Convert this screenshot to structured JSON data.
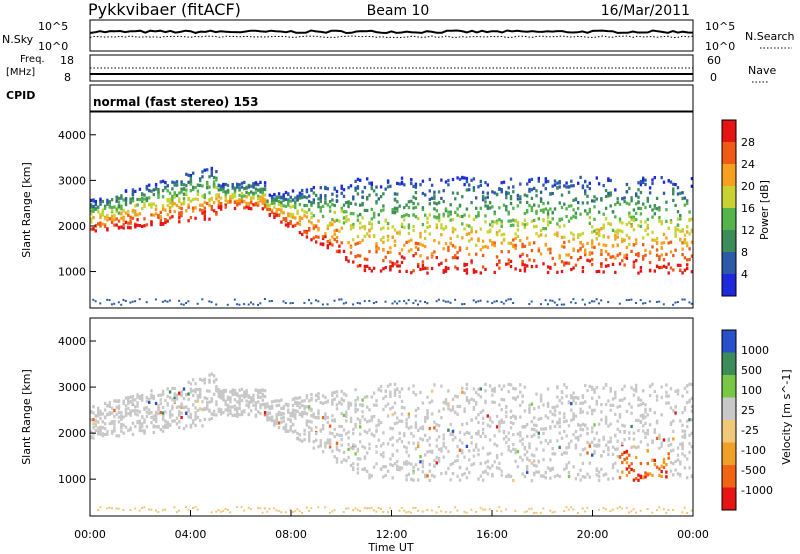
{
  "header": {
    "title": "Pykkvibaer (fitACF)",
    "beam": "Beam 10",
    "date": "16/Mar/2011"
  },
  "top_panels": {
    "nsky_label": "N.Sky",
    "nsky_ticks": [
      "10^5",
      "10^0"
    ],
    "nsky_right_ticks": [
      "10^5",
      "10^0"
    ],
    "nsearch_label": "N.Search",
    "freq_label_line1": "Freq.",
    "freq_label_line2": "[MHz]",
    "freq_ticks": [
      "18",
      "8"
    ],
    "nave_ticks": [
      "60",
      "0"
    ],
    "nave_label": "Nave",
    "cpid_label": "CPID",
    "cpid_text": "normal (fast stereo) 153"
  },
  "chart_data": [
    {
      "type": "heatmap",
      "name": "power",
      "ylabel": "Slant Range [km]",
      "yticks": [
        "4000",
        "3000",
        "2000",
        "1000"
      ],
      "ylim": [
        200,
        4500
      ],
      "colorbar_label": "Power [dB]",
      "colorbar_ticks": [
        "28",
        "24",
        "20",
        "16",
        "12",
        "8",
        "4"
      ],
      "colors": [
        "#1e28dc",
        "#2a5aa8",
        "#3c8c5a",
        "#52b44a",
        "#c8d232",
        "#f5a01e",
        "#f05a14",
        "#e61414"
      ]
    },
    {
      "type": "heatmap",
      "name": "velocity",
      "ylabel": "Slant Range [km]",
      "yticks": [
        "4000",
        "3000",
        "2000",
        "1000"
      ],
      "ylim": [
        200,
        4500
      ],
      "colorbar_label": "Velocity [m s^-1]",
      "colorbar_ticks": [
        "1000",
        "500",
        "100",
        "25",
        "-25",
        "-100",
        "-500",
        "-1000"
      ],
      "colors": [
        "#2850c8",
        "#3c8c5a",
        "#78c846",
        "#c8c8c8",
        "#f0c878",
        "#f0a028",
        "#f06414",
        "#e61414"
      ]
    }
  ],
  "x_axis": {
    "ticks": [
      "00:00",
      "04:00",
      "08:00",
      "12:00",
      "16:00",
      "20:00",
      "00:00"
    ],
    "label": "Time UT"
  }
}
